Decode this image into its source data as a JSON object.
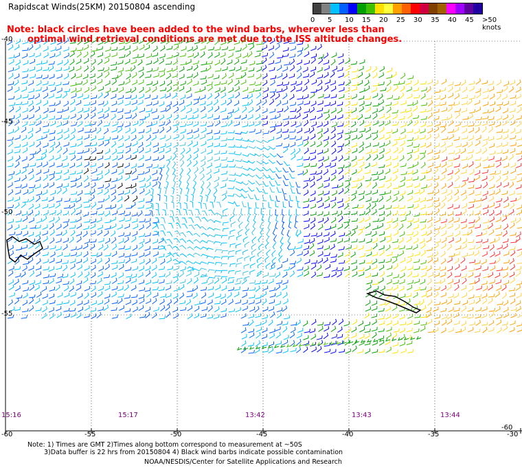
{
  "title": "Rapidscat Winds(25KM) 20150804 ascending",
  "note_line1": "Note: black circles have been added to the wind barbs, wherever less than",
  "note_line2": "optimal wind retrieval conditions are met due to the ISS altitude changes.",
  "colorbar": {
    "labels": [
      "0",
      "5",
      "10",
      "15",
      "20",
      "25",
      "30",
      "35",
      "40",
      "45",
      ">50 knots"
    ],
    "colors": [
      "#404040",
      "#808080",
      "#00c0ff",
      "#0060ff",
      "#0000ff",
      "#00a000",
      "#40c000",
      "#ffe000",
      "#ffff40",
      "#ffa000",
      "#ff6000",
      "#ff0000",
      "#d00040",
      "#804000",
      "#a06000",
      "#ff00ff",
      "#a000ff",
      "#6000a0",
      "#2000a0"
    ]
  },
  "lon_ticks": [
    "-60",
    "-55",
    "-50",
    "-45",
    "-40",
    "-35",
    "-30"
  ],
  "lat_ticks": [
    "-40",
    "-45",
    "-50",
    "-55",
    "-60"
  ],
  "time_labels": [
    "15:16",
    "15:17",
    "13:42",
    "13:43",
    "13:44"
  ],
  "footnote_line1": "Note: 1) Times are GMT 2)Times along bottom correspond to measurement at ~50S",
  "footnote_line2": "3)Data buffer is 22 hrs from 20150804 4) Black wind barbs indicate possible contamination",
  "footnote_line3": "NOAA/NESDIS/Center for Satellite Applications and Research"
}
